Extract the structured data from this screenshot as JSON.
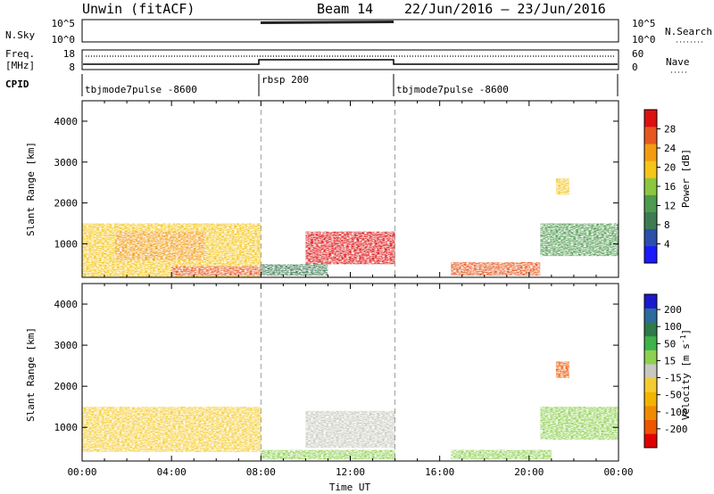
{
  "header": {
    "station": "Unwin (fitACF)",
    "beam": "Beam 14",
    "date_range": "22/Jun/2016 – 23/Jun/2016"
  },
  "strips": {
    "nsky_label": "N.Sky",
    "nsky_ticks": [
      "10^5",
      "10^0"
    ],
    "nsearch_label": "N.Search",
    "freq_label_1": "Freq.",
    "freq_label_2": "[MHz]",
    "freq_ticks": [
      "18",
      "8"
    ],
    "nave_label": "Nave",
    "nave_ticks": [
      "60",
      "0"
    ],
    "cpid_label": "CPID",
    "cpid_segments": [
      {
        "label": "tbjmode7pulse -8600",
        "start": "00:00",
        "end": "08:00"
      },
      {
        "label": "rbsp 200",
        "start": "08:00",
        "end": "14:00"
      },
      {
        "label": "tbjmode7pulse -8600",
        "start": "14:00",
        "end": "24:00"
      }
    ]
  },
  "colors": {
    "power": [
      "#1a1aff",
      "#2b4faa",
      "#3d7c52",
      "#4e9a4e",
      "#8dc63f",
      "#f5c518",
      "#f39c12",
      "#e8571f",
      "#dd1111"
    ],
    "velocity": [
      "#e00000",
      "#ee5500",
      "#f08a00",
      "#f2b400",
      "#f5cc30",
      "#c8c8c0",
      "#8ed050",
      "#3db34a",
      "#2e7a4a",
      "#2c6aa0",
      "#1a1acc"
    ]
  },
  "chart_data": [
    {
      "type": "heatmap",
      "name_shown": "Power [dB]",
      "ylabel": "Slant Range [km]",
      "ylim": [
        180,
        4500
      ],
      "yticks": [
        "4000",
        "3000",
        "2000",
        "1000"
      ],
      "xlim": [
        "00:00",
        "24:00"
      ],
      "xticks": [
        "00:00",
        "04:00",
        "08:00",
        "12:00",
        "16:00",
        "20:00",
        "00:00"
      ],
      "colorbar": {
        "label": "Power [dB]",
        "ticks": [
          "28",
          "24",
          "20",
          "16",
          "12",
          "8",
          "4"
        ],
        "range": [
          0,
          32
        ]
      },
      "regions": [
        {
          "x": [
            0.0,
            8.0
          ],
          "y": [
            180,
            1500
          ],
          "value": 20
        },
        {
          "x": [
            1.5,
            5.5
          ],
          "y": [
            600,
            1300
          ],
          "value": 24
        },
        {
          "x": [
            4.0,
            8.0
          ],
          "y": [
            220,
            450
          ],
          "value": 28
        },
        {
          "x": [
            10.0,
            14.0
          ],
          "y": [
            500,
            1300
          ],
          "value": 30
        },
        {
          "x": [
            8.0,
            11.0
          ],
          "y": [
            220,
            500
          ],
          "value": 8
        },
        {
          "x": [
            16.5,
            20.5
          ],
          "y": [
            220,
            550
          ],
          "value": 28
        },
        {
          "x": [
            20.5,
            24.0
          ],
          "y": [
            700,
            1500
          ],
          "value": 12
        },
        {
          "x": [
            21.2,
            21.8
          ],
          "y": [
            2200,
            2600
          ],
          "value": 20
        }
      ]
    },
    {
      "type": "heatmap",
      "name_shown": "Velocity [m s-1]",
      "ylabel": "Slant Range [km]",
      "ylim": [
        180,
        4500
      ],
      "yticks": [
        "4000",
        "3000",
        "2000",
        "1000"
      ],
      "xlim": [
        "00:00",
        "24:00"
      ],
      "xticks": [
        "00:00",
        "04:00",
        "08:00",
        "12:00",
        "16:00",
        "20:00",
        "00:00"
      ],
      "xlabel": "Time UT",
      "colorbar": {
        "label": "Velocity [m s",
        "label_sup": "-1",
        "label_end": "]",
        "ticks": [
          "200",
          "100",
          "50",
          "15",
          "-15",
          "-50",
          "-100",
          "-200"
        ],
        "range": [
          -250,
          250
        ]
      },
      "regions": [
        {
          "x": [
            0.0,
            8.0
          ],
          "y": [
            400,
            1500
          ],
          "value": -30
        },
        {
          "x": [
            2.0,
            8.0
          ],
          "y": [
            500,
            800
          ],
          "value": -60
        },
        {
          "x": [
            10.0,
            14.0
          ],
          "y": [
            500,
            1400
          ],
          "value": 0
        },
        {
          "x": [
            8.0,
            14.0
          ],
          "y": [
            220,
            450
          ],
          "value": 40
        },
        {
          "x": [
            16.5,
            21.0
          ],
          "y": [
            220,
            450
          ],
          "value": 40
        },
        {
          "x": [
            20.5,
            24.0
          ],
          "y": [
            700,
            1500
          ],
          "value": 30
        },
        {
          "x": [
            21.2,
            21.8
          ],
          "y": [
            2200,
            2600
          ],
          "value": -200
        }
      ]
    }
  ],
  "xlabel": "Time UT"
}
